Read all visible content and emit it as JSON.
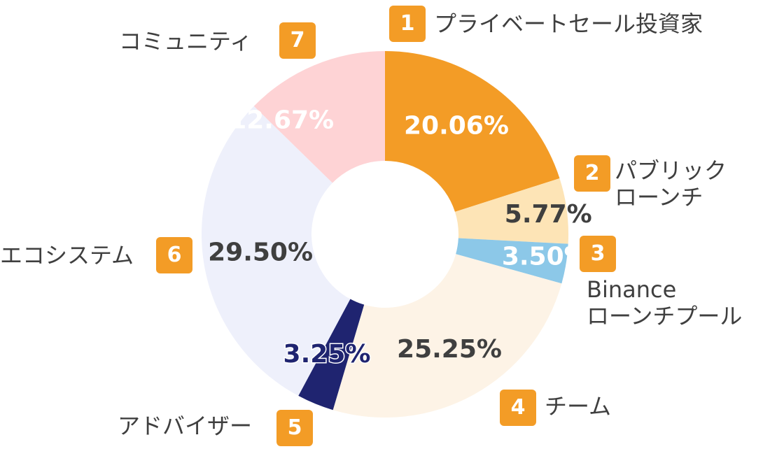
{
  "chart_data": {
    "type": "pie",
    "variant": "donut",
    "categories": [
      "プライベートセール投資家",
      "パブリックローンチ",
      "Binanceローンチプール",
      "チーム",
      "アドバイザー",
      "エコシステム",
      "コミュニティ"
    ],
    "values": [
      20.06,
      5.77,
      3.5,
      25.25,
      3.25,
      29.5,
      12.67
    ],
    "value_labels": [
      "20.06%",
      "5.77%",
      "3.50%",
      "25.25%",
      "3.25%",
      "29.50%",
      "12.67%"
    ],
    "badges": [
      "1",
      "2",
      "3",
      "4",
      "5",
      "6",
      "7"
    ],
    "label_lines": [
      [
        "プライベートセール投資家"
      ],
      [
        "パブリック",
        "ローンチ"
      ],
      [
        "Binance",
        "ローンチプール"
      ],
      [
        "チーム"
      ],
      [
        "アドバイザー"
      ],
      [
        "エコシステム"
      ],
      [
        "コミュニティ"
      ]
    ],
    "colors": [
      "#f39c26",
      "#fde4b6",
      "#8cc8e8",
      "#fdf3e6",
      "#1f2470",
      "#eef0fb",
      "#fed3d5"
    ],
    "value_label_colors": [
      "#ffffff",
      "#3f3f3f",
      "#ffffff",
      "#3f3f3f",
      "#ffffff",
      "#3f3f3f",
      "#ffffff"
    ],
    "badge_color": "#f39c26"
  }
}
